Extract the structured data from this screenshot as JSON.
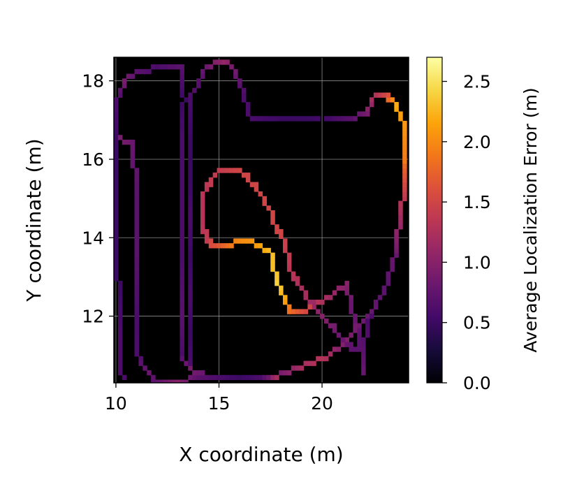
{
  "chart_data": {
    "type": "heatmap",
    "title": "",
    "xlabel": "X coordinate (m)",
    "ylabel": "Y coordinate (m)",
    "xlim": [
      9.9,
      24.2
    ],
    "ylim": [
      10.3,
      18.6
    ],
    "xticks": [
      10,
      15,
      20
    ],
    "yticks": [
      12,
      14,
      16,
      18
    ],
    "grid": true,
    "background_color": "#000000",
    "colormap": "inferno",
    "colorbar": {
      "label": "Average Localization Error (m)",
      "range": [
        0.0,
        2.7
      ],
      "ticks": [
        0.0,
        0.5,
        1.0,
        1.5,
        2.0,
        2.5
      ],
      "tick_labels": [
        "0.0",
        "0.5",
        "1.0",
        "1.5",
        "2.0",
        "2.5"
      ]
    },
    "paths": [
      {
        "points": [
          [
            10.3,
            10.4
          ],
          [
            10.2,
            11.5
          ],
          [
            10.1,
            13
          ],
          [
            10.1,
            15
          ],
          [
            10.1,
            16.5
          ],
          [
            10.1,
            17.5
          ],
          [
            10.4,
            18
          ],
          [
            11,
            18.2
          ],
          [
            12,
            18.35
          ],
          [
            13,
            18.3
          ]
        ],
        "errors": [
          0.6,
          0.6,
          0.5,
          0.5,
          0.5,
          0.6,
          0.9,
          0.7,
          0.6,
          0.7
        ]
      },
      {
        "points": [
          [
            10.2,
            16.5
          ],
          [
            10.8,
            16.4
          ],
          [
            11,
            15
          ],
          [
            11,
            13.5
          ],
          [
            11,
            12
          ],
          [
            11,
            11
          ],
          [
            11.5,
            10.6
          ],
          [
            11.8,
            10.35
          ],
          [
            13,
            10.35
          ],
          [
            14,
            10.4
          ],
          [
            15,
            10.4
          ],
          [
            16,
            10.4
          ],
          [
            17,
            10.4
          ],
          [
            17.8,
            10.4
          ]
        ],
        "errors": [
          0.9,
          0.8,
          0.7,
          0.7,
          0.6,
          0.6,
          0.8,
          0.7,
          1.0,
          0.7,
          0.6,
          0.5,
          0.6,
          1.2
        ]
      },
      {
        "points": [
          [
            13.2,
            18.3
          ],
          [
            13.3,
            17.5
          ],
          [
            13.2,
            16.5
          ],
          [
            13.2,
            15
          ],
          [
            13.2,
            13.5
          ],
          [
            13.2,
            12
          ],
          [
            13.2,
            11
          ],
          [
            13.5,
            10.7
          ],
          [
            14.2,
            10.5
          ],
          [
            15,
            10.4
          ],
          [
            16,
            10.4
          ],
          [
            17,
            10.4
          ],
          [
            18,
            10.5
          ],
          [
            19,
            10.7
          ],
          [
            20,
            10.9
          ],
          [
            20.8,
            11.2
          ],
          [
            21.5,
            11.6
          ],
          [
            22.2,
            12
          ],
          [
            23,
            12.6
          ],
          [
            23.5,
            13.5
          ],
          [
            23.9,
            14.9
          ],
          [
            24,
            16
          ],
          [
            23.9,
            17
          ],
          [
            23.6,
            17.4
          ],
          [
            23.1,
            17.6
          ],
          [
            22.6,
            17.6
          ],
          [
            22.1,
            17.2
          ],
          [
            21.5,
            17
          ],
          [
            20.7,
            17
          ],
          [
            19.5,
            17
          ],
          [
            18,
            17
          ],
          [
            16.5,
            17
          ],
          [
            16.2,
            17.6
          ],
          [
            15.7,
            18.3
          ],
          [
            15.2,
            18.5
          ],
          [
            14.6,
            18.4
          ],
          [
            14.1,
            18.1
          ],
          [
            13.7,
            17.6
          ],
          [
            13.6,
            16.5
          ],
          [
            13.5,
            15.5
          ],
          [
            13.5,
            14.5
          ],
          [
            13.5,
            13.5
          ],
          [
            13.5,
            12.5
          ],
          [
            13.5,
            11.5
          ],
          [
            13.6,
            10.8
          ]
        ],
        "errors": [
          0.7,
          0.5,
          0.6,
          0.6,
          0.6,
          0.7,
          0.6,
          0.9,
          0.8,
          0.5,
          0.7,
          0.6,
          0.9,
          1.2,
          1.3,
          1.0,
          0.9,
          0.8,
          0.7,
          0.8,
          1.3,
          1.9,
          2.1,
          2.2,
          1.6,
          1.3,
          0.9,
          0.7,
          0.6,
          0.5,
          0.5,
          0.6,
          0.6,
          0.9,
          1.1,
          0.9,
          0.7,
          0.6,
          0.5,
          0.5,
          0.6,
          0.5,
          0.6,
          0.5,
          0.6
        ]
      },
      {
        "points": [
          [
            14.4,
            13.9
          ],
          [
            14.2,
            14.4
          ],
          [
            14.2,
            15
          ],
          [
            14.6,
            15.5
          ],
          [
            15,
            15.7
          ],
          [
            16,
            15.7
          ],
          [
            16.6,
            15.4
          ],
          [
            17.1,
            15
          ],
          [
            17.5,
            14.6
          ],
          [
            18,
            14.1
          ],
          [
            18.3,
            13.6
          ],
          [
            18.6,
            13
          ],
          [
            19.1,
            12.6
          ],
          [
            19.7,
            12.2
          ],
          [
            20.4,
            11.8
          ],
          [
            21,
            11.4
          ],
          [
            21.6,
            11.1
          ]
        ],
        "errors": [
          1.4,
          1.3,
          1.3,
          1.4,
          1.4,
          1.5,
          1.5,
          1.5,
          1.5,
          1.5,
          1.4,
          1.3,
          1.2,
          1.1,
          0.9,
          0.8,
          0.7
        ]
      },
      {
        "points": [
          [
            14.4,
            13.9
          ],
          [
            14.8,
            13.8
          ],
          [
            15.5,
            13.8
          ],
          [
            16,
            13.9
          ],
          [
            16.8,
            13.85
          ],
          [
            17.5,
            13.6
          ],
          [
            17.7,
            13.2
          ],
          [
            17.9,
            12.8
          ],
          [
            18.1,
            12.5
          ],
          [
            18.3,
            12.2
          ],
          [
            19,
            12.1
          ],
          [
            19.8,
            12.3
          ],
          [
            20.5,
            12.6
          ],
          [
            21.1,
            12.8
          ],
          [
            21.4,
            12.4
          ],
          [
            21.6,
            11.8
          ],
          [
            21.8,
            11.4
          ],
          [
            22,
            11
          ]
        ],
        "errors": [
          1.5,
          1.6,
          1.9,
          2.0,
          2.1,
          2.3,
          2.3,
          2.4,
          2.2,
          1.9,
          1.6,
          1.3,
          1.1,
          1.0,
          0.8,
          0.8,
          0.7,
          0.7
        ]
      },
      {
        "points": [
          [
            22.6,
            12.4
          ],
          [
            22.2,
            11.8
          ],
          [
            22,
            11.2
          ],
          [
            22,
            10.5
          ]
        ],
        "errors": [
          0.6,
          0.6,
          0.7,
          0.8
        ]
      }
    ]
  }
}
